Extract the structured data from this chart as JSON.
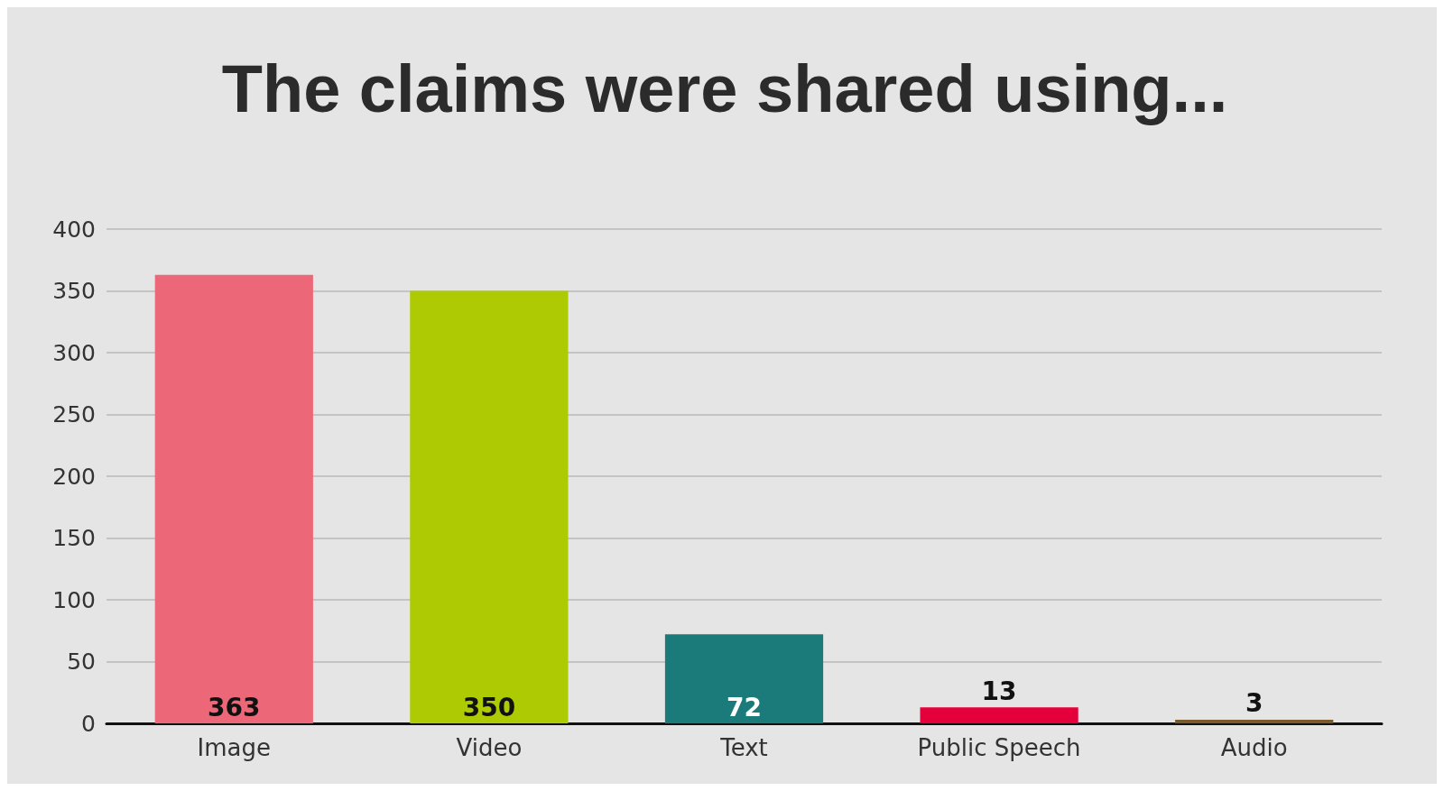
{
  "chart_data": {
    "type": "bar",
    "title": "The claims were shared using...",
    "categories": [
      "Image",
      "Video",
      "Text",
      "Public Speech",
      "Audio"
    ],
    "values": [
      363,
      350,
      72,
      13,
      3
    ],
    "colors": [
      "#ec6777",
      "#aeca02",
      "#1b7b7a",
      "#e4003b",
      "#7a5a2a"
    ],
    "ylim": [
      0,
      400
    ],
    "yticks": [
      0,
      50,
      100,
      150,
      200,
      250,
      300,
      350,
      400
    ],
    "grid": "y",
    "data_labels": true
  }
}
